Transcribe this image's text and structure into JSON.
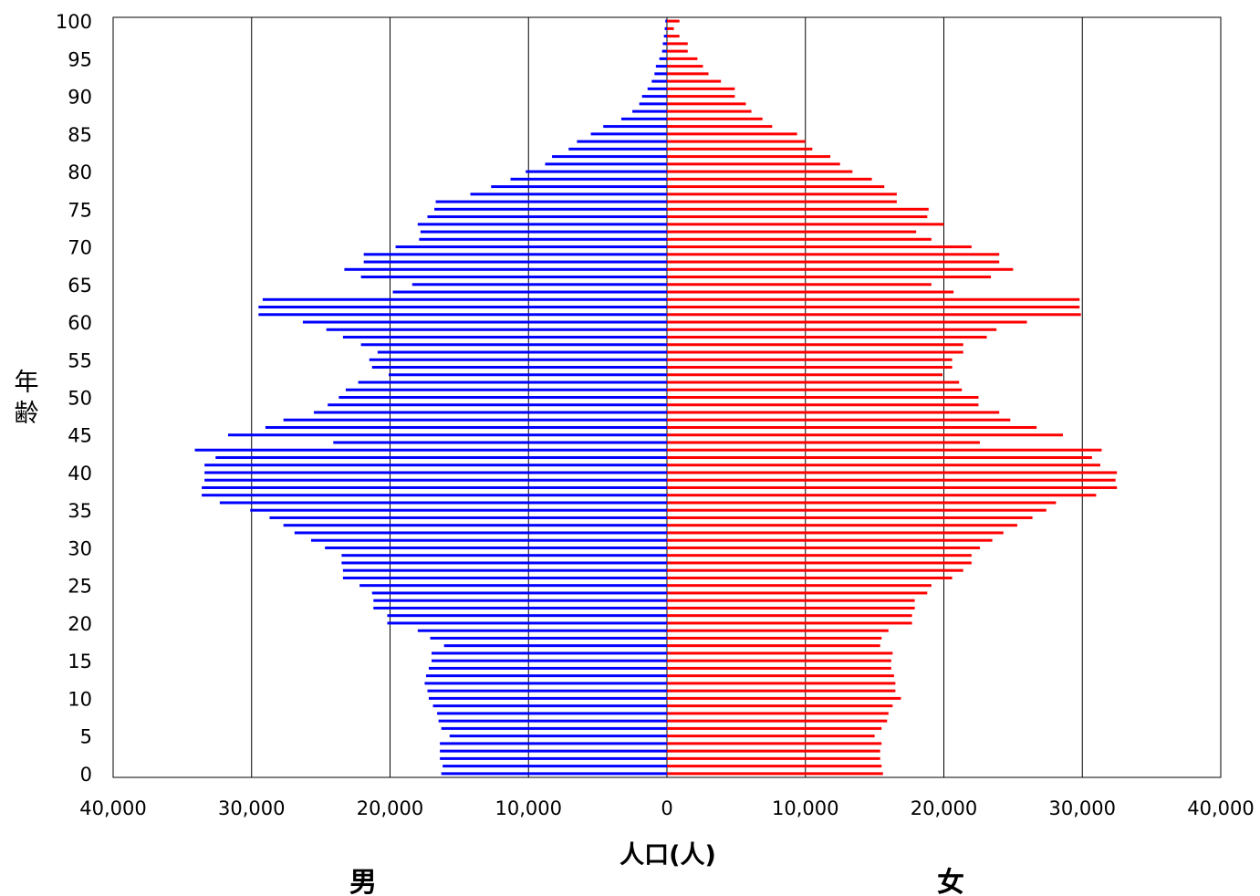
{
  "chart_data": {
    "type": "bar",
    "orientation": "horizontal-population-pyramid",
    "xlabel": "人口(人)",
    "ylabel": "年齢",
    "left_label": "男",
    "right_label": "女",
    "x_tick_labels": [
      "40,000",
      "30,000",
      "20,000",
      "10,000",
      "0",
      "10,000",
      "20,000",
      "30,000",
      "40,000"
    ],
    "y_tick_labels": [
      "0",
      "5",
      "10",
      "15",
      "20",
      "25",
      "30",
      "35",
      "40",
      "45",
      "50",
      "55",
      "60",
      "65",
      "70",
      "75",
      "80",
      "85",
      "90",
      "95",
      "100"
    ],
    "xlim": [
      -40000,
      40000
    ],
    "ylim": [
      0,
      100
    ],
    "grid": true,
    "categories": [
      0,
      1,
      2,
      3,
      4,
      5,
      6,
      7,
      8,
      9,
      10,
      11,
      12,
      13,
      14,
      15,
      16,
      17,
      18,
      19,
      20,
      21,
      22,
      23,
      24,
      25,
      26,
      27,
      28,
      29,
      30,
      31,
      32,
      33,
      34,
      35,
      36,
      37,
      38,
      39,
      40,
      41,
      42,
      43,
      44,
      45,
      46,
      47,
      48,
      49,
      50,
      51,
      52,
      53,
      54,
      55,
      56,
      57,
      58,
      59,
      60,
      61,
      62,
      63,
      64,
      65,
      66,
      67,
      68,
      69,
      70,
      71,
      72,
      73,
      74,
      75,
      76,
      77,
      78,
      79,
      80,
      81,
      82,
      83,
      84,
      85,
      86,
      87,
      88,
      89,
      90,
      91,
      92,
      93,
      94,
      95,
      96,
      97,
      98,
      99,
      100
    ],
    "series": [
      {
        "name": "男",
        "color": "#0000ff",
        "values": [
          16300,
          16200,
          16400,
          16400,
          16400,
          15700,
          16300,
          16500,
          16600,
          16900,
          17200,
          17300,
          17500,
          17400,
          17200,
          17000,
          17000,
          16100,
          17100,
          18000,
          20200,
          20200,
          21200,
          21200,
          21300,
          22200,
          23400,
          23400,
          23500,
          23500,
          24700,
          25700,
          26900,
          27700,
          28700,
          30100,
          32300,
          33600,
          33600,
          33400,
          33400,
          33400,
          32600,
          34100,
          24100,
          31700,
          29000,
          27700,
          25500,
          24500,
          23700,
          23200,
          22300,
          20100,
          21300,
          21500,
          20900,
          22100,
          23400,
          24600,
          26300,
          29500,
          29500,
          29200,
          19800,
          18400,
          22100,
          23300,
          21900,
          21900,
          19600,
          17900,
          17800,
          18000,
          17300,
          16800,
          16700,
          14200,
          12700,
          11300,
          10200,
          8800,
          8300,
          7100,
          6500,
          5500,
          4600,
          3300,
          2500,
          2000,
          1800,
          1400,
          1100,
          900,
          800,
          550,
          350,
          300,
          220,
          160,
          120
        ],
        "bar_len_factor": 1
      },
      {
        "name": "女",
        "color": "#ff0000",
        "values": [
          15600,
          15500,
          15400,
          15400,
          15500,
          15000,
          15500,
          15900,
          16000,
          16300,
          16900,
          16500,
          16500,
          16400,
          16200,
          16200,
          16300,
          15400,
          15500,
          16000,
          17700,
          17700,
          17900,
          17900,
          18800,
          19100,
          20600,
          21400,
          22000,
          22000,
          22600,
          23500,
          24300,
          25300,
          26400,
          27400,
          28100,
          31000,
          32500,
          32400,
          32500,
          31300,
          30700,
          31400,
          22600,
          28600,
          26700,
          24800,
          24000,
          22500,
          22500,
          21300,
          21100,
          19900,
          20600,
          20600,
          21400,
          21400,
          23100,
          23800,
          26000,
          29900,
          29800,
          29800,
          20700,
          19100,
          23400,
          25000,
          24000,
          24000,
          22000,
          19100,
          18000,
          20000,
          18800,
          18900,
          16600,
          16600,
          15700,
          14800,
          13400,
          12500,
          11800,
          10500,
          10000,
          9400,
          7600,
          6900,
          6100,
          5700,
          4900,
          4900,
          3900,
          3000,
          2600,
          2200,
          1500,
          1500,
          900,
          500,
          900
        ]
      }
    ]
  }
}
